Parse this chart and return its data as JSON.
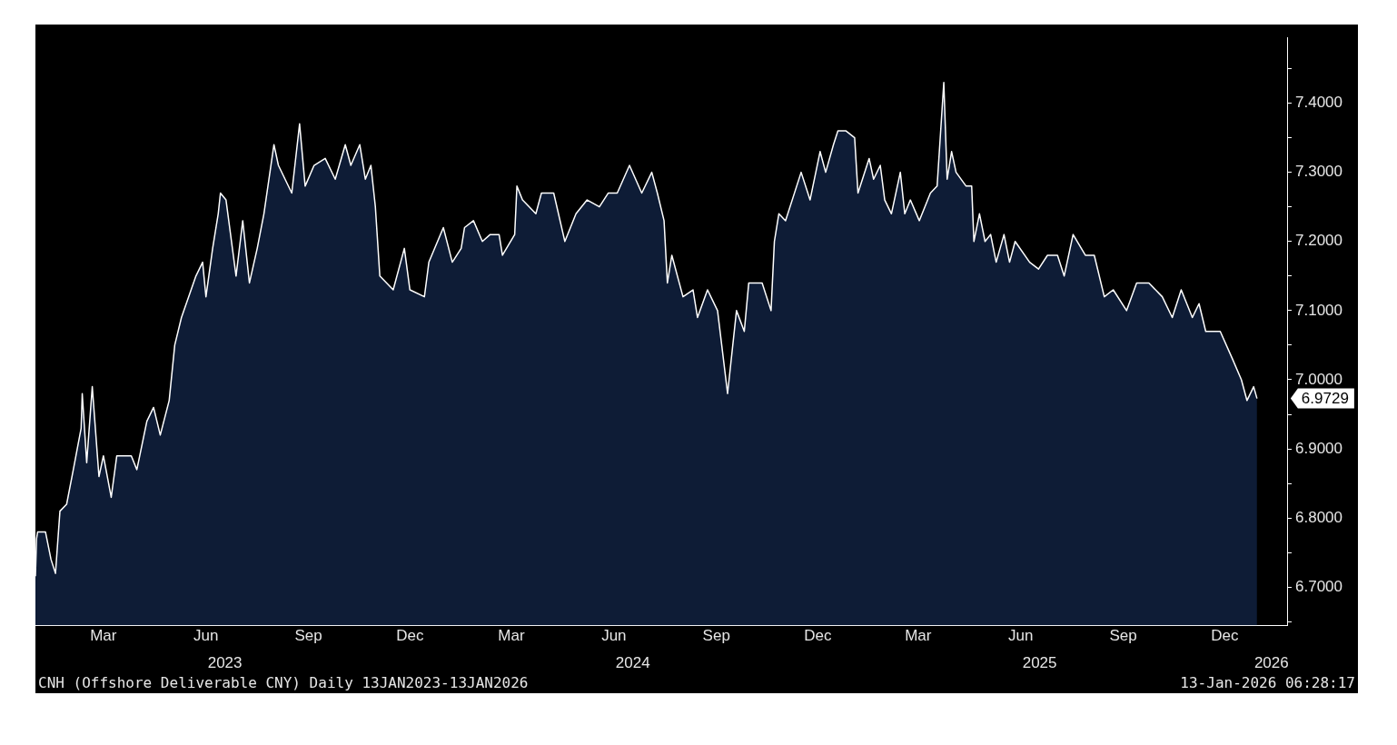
{
  "chart_data": {
    "type": "area",
    "x": [
      "2023-01-13",
      "2023-01-14",
      "2023-01-15",
      "2023-01-22",
      "2023-01-27",
      "2023-01-31",
      "2023-02-04",
      "2023-02-10",
      "2023-02-16",
      "2023-02-23",
      "2023-02-24",
      "2023-02-28",
      "2023-03-05",
      "2023-03-11",
      "2023-03-15",
      "2023-03-22",
      "2023-03-27",
      "2023-04-09",
      "2023-04-14",
      "2023-04-23",
      "2023-04-29",
      "2023-05-05",
      "2023-05-13",
      "2023-05-18",
      "2023-05-24",
      "2023-06-06",
      "2023-06-12",
      "2023-06-15",
      "2023-06-21",
      "2023-06-26",
      "2023-06-28",
      "2023-07-03",
      "2023-07-12",
      "2023-07-18",
      "2023-07-24",
      "2023-07-31",
      "2023-08-06",
      "2023-08-15",
      "2023-08-19",
      "2023-08-31",
      "2023-09-07",
      "2023-09-12",
      "2023-09-20",
      "2023-09-30",
      "2023-10-09",
      "2023-10-18",
      "2023-10-23",
      "2023-10-31",
      "2023-11-05",
      "2023-11-10",
      "2023-11-14",
      "2023-11-18",
      "2023-11-30",
      "2023-12-10",
      "2023-12-15",
      "2023-12-28",
      "2024-01-01",
      "2024-01-14",
      "2024-01-22",
      "2024-01-30",
      "2024-02-02",
      "2024-02-10",
      "2024-02-18",
      "2024-02-25",
      "2024-03-04",
      "2024-03-07",
      "2024-03-18",
      "2024-03-20",
      "2024-03-25",
      "2024-04-06",
      "2024-04-11",
      "2024-04-22",
      "2024-05-02",
      "2024-05-12",
      "2024-05-22",
      "2024-06-02",
      "2024-06-10",
      "2024-06-18",
      "2024-06-29",
      "2024-07-10",
      "2024-07-19",
      "2024-07-24",
      "2024-07-30",
      "2024-08-02",
      "2024-08-06",
      "2024-08-16",
      "2024-08-25",
      "2024-08-29",
      "2024-09-07",
      "2024-09-16",
      "2024-09-25",
      "2024-10-03",
      "2024-10-10",
      "2024-10-14",
      "2024-10-26",
      "2024-11-03",
      "2024-11-06",
      "2024-11-10",
      "2024-11-16",
      "2024-11-30",
      "2024-12-08",
      "2024-12-17",
      "2024-12-22",
      "2024-12-29",
      "2025-01-02",
      "2025-01-09",
      "2025-01-17",
      "2025-01-20",
      "2025-01-30",
      "2025-02-03",
      "2025-02-09",
      "2025-02-13",
      "2025-02-19",
      "2025-02-27",
      "2025-03-03",
      "2025-03-08",
      "2025-03-16",
      "2025-03-26",
      "2025-04-01",
      "2025-04-07",
      "2025-04-10",
      "2025-04-14",
      "2025-04-18",
      "2025-04-27",
      "2025-05-02",
      "2025-05-04",
      "2025-05-09",
      "2025-05-14",
      "2025-05-19",
      "2025-05-24",
      "2025-05-31",
      "2025-06-05",
      "2025-06-10",
      "2025-06-23",
      "2025-07-01",
      "2025-07-09",
      "2025-07-18",
      "2025-07-24",
      "2025-08-01",
      "2025-08-12",
      "2025-08-20",
      "2025-08-29",
      "2025-09-06",
      "2025-09-18",
      "2025-09-27",
      "2025-10-08",
      "2025-10-20",
      "2025-10-29",
      "2025-11-06",
      "2025-11-16",
      "2025-11-22",
      "2025-11-28",
      "2025-12-11",
      "2025-12-22",
      "2025-12-30",
      "2026-01-04",
      "2026-01-10",
      "2026-01-13"
    ],
    "values": [
      6.716,
      6.77,
      6.78,
      6.78,
      6.74,
      6.72,
      6.81,
      6.82,
      6.87,
      6.93,
      6.98,
      6.88,
      6.99,
      6.86,
      6.89,
      6.83,
      6.89,
      6.89,
      6.87,
      6.94,
      6.96,
      6.92,
      6.97,
      7.05,
      7.09,
      7.15,
      7.17,
      7.12,
      7.19,
      7.24,
      7.27,
      7.26,
      7.15,
      7.23,
      7.14,
      7.19,
      7.24,
      7.34,
      7.31,
      7.27,
      7.37,
      7.28,
      7.31,
      7.32,
      7.29,
      7.34,
      7.31,
      7.34,
      7.29,
      7.31,
      7.25,
      7.15,
      7.13,
      7.19,
      7.13,
      7.12,
      7.17,
      7.22,
      7.17,
      7.19,
      7.22,
      7.23,
      7.2,
      7.21,
      7.21,
      7.18,
      7.21,
      7.28,
      7.26,
      7.24,
      7.27,
      7.27,
      7.2,
      7.24,
      7.26,
      7.25,
      7.27,
      7.27,
      7.31,
      7.27,
      7.3,
      7.27,
      7.23,
      7.14,
      7.18,
      7.12,
      7.13,
      7.09,
      7.13,
      7.1,
      6.98,
      7.1,
      7.07,
      7.14,
      7.14,
      7.1,
      7.2,
      7.24,
      7.23,
      7.3,
      7.26,
      7.33,
      7.3,
      7.34,
      7.36,
      7.36,
      7.35,
      7.27,
      7.32,
      7.29,
      7.31,
      7.26,
      7.24,
      7.3,
      7.24,
      7.26,
      7.23,
      7.27,
      7.28,
      7.43,
      7.29,
      7.33,
      7.3,
      7.28,
      7.28,
      7.2,
      7.24,
      7.2,
      7.21,
      7.17,
      7.21,
      7.17,
      7.2,
      7.17,
      7.16,
      7.18,
      7.18,
      7.15,
      7.21,
      7.18,
      7.18,
      7.12,
      7.13,
      7.1,
      7.14,
      7.14,
      7.12,
      7.09,
      7.13,
      7.09,
      7.11,
      7.07,
      7.07,
      7.03,
      7.0,
      6.97,
      6.99,
      6.9729
    ],
    "color": "#0e1c36",
    "xlim": [
      "2023-01-13",
      "2026-02-09"
    ],
    "xticks": [
      {
        "value": "2023-03-15",
        "label": "Mar"
      },
      {
        "value": "2023-06-15",
        "label": "Jun"
      },
      {
        "value": "2023-09-15",
        "label": "Sep"
      },
      {
        "value": "2023-12-15",
        "label": "Dec"
      },
      {
        "value": "2024-03-15",
        "label": "Mar"
      },
      {
        "value": "2024-06-15",
        "label": "Jun"
      },
      {
        "value": "2024-09-15",
        "label": "Sep"
      },
      {
        "value": "2024-12-15",
        "label": "Dec"
      },
      {
        "value": "2025-03-15",
        "label": "Mar"
      },
      {
        "value": "2025-06-15",
        "label": "Jun"
      },
      {
        "value": "2025-09-15",
        "label": "Sep"
      },
      {
        "value": "2025-12-15",
        "label": "Dec"
      }
    ],
    "x2lim": [
      "2023-01-13",
      "2026-02-09"
    ],
    "x2ticks": [
      {
        "value": "2023-07-02",
        "label": "2023"
      },
      {
        "value": "2024-07-02",
        "label": "2024"
      },
      {
        "value": "2025-07-02",
        "label": "2025"
      },
      {
        "value": "2026-01-26",
        "label": "2026"
      }
    ],
    "ylim": [
      6.645,
      7.495
    ],
    "yticks": [
      {
        "value": 6.65,
        "label": null
      },
      {
        "value": 6.7,
        "label": "6.7000"
      },
      {
        "value": 6.75,
        "label": null
      },
      {
        "value": 6.8,
        "label": "6.8000"
      },
      {
        "value": 6.85,
        "label": null
      },
      {
        "value": 6.9,
        "label": "6.9000"
      },
      {
        "value": 6.95,
        "label": null
      },
      {
        "value": 7.0,
        "label": "7.0000"
      },
      {
        "value": 7.05,
        "label": null
      },
      {
        "value": 7.1,
        "label": "7.1000"
      },
      {
        "value": 7.15,
        "label": null
      },
      {
        "value": 7.2,
        "label": "7.2000"
      },
      {
        "value": 7.25,
        "label": null
      },
      {
        "value": 7.3,
        "label": "7.3000"
      },
      {
        "value": 7.35,
        "label": null
      },
      {
        "value": 7.4,
        "label": "7.4000"
      },
      {
        "value": 7.45,
        "label": null
      }
    ],
    "grid": false,
    "legend": false,
    "annotations": [
      "CNH (Offshore Deliverable CNY) Daily 13JAN2023-13JAN2026",
      "13-Jan-2026 06:28:17",
      {
        "text": "6.9729",
        "x": "2026-01-13",
        "y": 6.9729
      }
    ]
  }
}
